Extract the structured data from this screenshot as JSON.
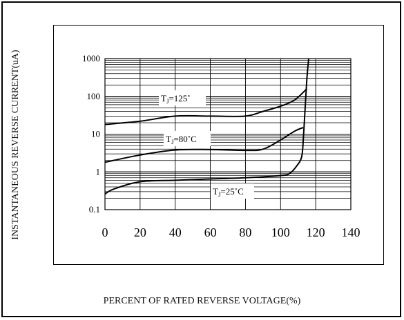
{
  "chart_data": {
    "type": "line",
    "xlabel": "PERCENT OF RATED REVERSE VOLTAGE(%)",
    "ylabel": "INSTANTANEOUS REVERSE CURRENT(uA)",
    "xlim": [
      0,
      140
    ],
    "ylim": [
      0.1,
      1000
    ],
    "yscale": "log",
    "x_ticks": [
      "0",
      "20",
      "40",
      "60",
      "80",
      "100",
      "120",
      "140"
    ],
    "y_ticks": [
      "0.1",
      "1",
      "10",
      "100",
      "1000"
    ],
    "grid": true,
    "series": [
      {
        "name": "TJ=125°",
        "label_text": "T",
        "label_sub": "J",
        "label_rest": "=125˚",
        "x": [
          0,
          20,
          40,
          60,
          80,
          90,
          100,
          108,
          115
        ],
        "y": [
          18,
          22,
          30,
          30,
          30,
          40,
          55,
          80,
          160
        ]
      },
      {
        "name": "TJ=80°C",
        "label_text": "T",
        "label_sub": "J",
        "label_rest": "=80˚C",
        "x": [
          0,
          20,
          40,
          60,
          80,
          90,
          100,
          108,
          113
        ],
        "y": [
          1.8,
          2.8,
          3.8,
          3.9,
          3.7,
          4.0,
          7.0,
          12,
          15
        ]
      },
      {
        "name": "TJ=25°C",
        "label_text": "T",
        "label_sub": "J",
        "label_rest": "=25˚C",
        "x": [
          0,
          5,
          20,
          40,
          60,
          80,
          100,
          105,
          109,
          112,
          113,
          114,
          115,
          116
        ],
        "y": [
          0.26,
          0.35,
          0.55,
          0.6,
          0.65,
          0.7,
          0.8,
          0.9,
          1.4,
          2.5,
          8,
          50,
          300,
          1000
        ]
      }
    ]
  }
}
